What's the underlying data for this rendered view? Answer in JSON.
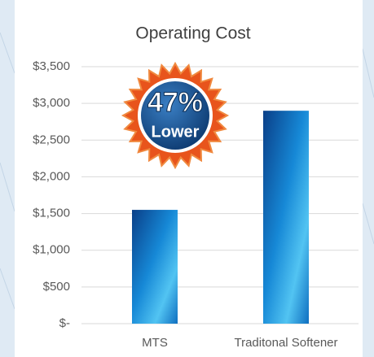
{
  "chart_data": {
    "type": "bar",
    "title": "Operating Cost",
    "categories": [
      "MTS",
      "Traditonal Softener"
    ],
    "values": [
      1550,
      2900
    ],
    "color": "#1a8fd6",
    "ylim": [
      0,
      3500
    ],
    "yticks": [
      {
        "value": 0,
        "label": "$-"
      },
      {
        "value": 500,
        "label": "$500"
      },
      {
        "value": 1000,
        "label": "$1,000"
      },
      {
        "value": 1500,
        "label": "$1,500"
      },
      {
        "value": 2000,
        "label": "$2,000"
      },
      {
        "value": 2500,
        "label": "$2,500"
      },
      {
        "value": 3000,
        "label": "$3,000"
      },
      {
        "value": 3500,
        "label": "$3,500"
      }
    ],
    "grid": true,
    "annotations": [
      "47%",
      "Lower"
    ]
  }
}
